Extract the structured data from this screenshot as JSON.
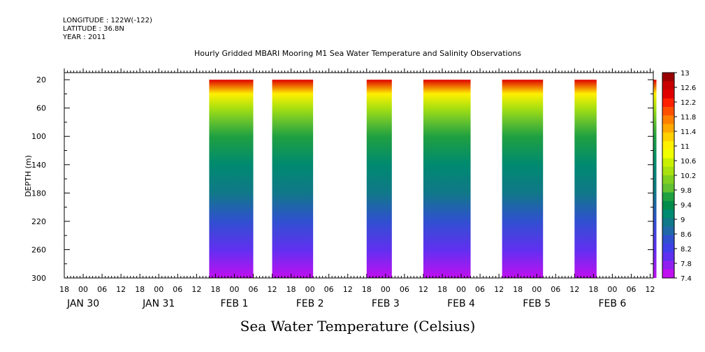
{
  "header": {
    "longitude": "LONGITUDE : 122W(-122)",
    "latitude": "LATITUDE : 36.8N",
    "year": "YEAR : 2011"
  },
  "chart_data": {
    "type": "heatmap",
    "title": "Hourly Gridded MBARI Mooring M1 Sea Water Temperature and Salinity Observations",
    "ylabel": "DEPTH (m)",
    "xlabel": "Sea Water Temperature (Celsius)",
    "ylim": [
      300,
      10
    ],
    "yticks": [
      "20",
      "60",
      "100",
      "140",
      "180",
      "220",
      "260",
      "300"
    ],
    "ytick_values": [
      20,
      60,
      100,
      140,
      180,
      220,
      260,
      300
    ],
    "xticks_hours": [
      "18",
      "00",
      "06",
      "12",
      "18",
      "00",
      "06",
      "12",
      "18",
      "00",
      "06",
      "12",
      "18",
      "00",
      "06",
      "12",
      "18",
      "00",
      "06",
      "12",
      "18",
      "00",
      "06",
      "12",
      "18",
      "00",
      "06",
      "12",
      "18",
      "00",
      "06",
      "12"
    ],
    "xticks_dates": [
      "JAN 30",
      "JAN 31",
      "FEB  1",
      "FEB  2",
      "FEB  3",
      "FEB  4",
      "FEB  5",
      "FEB  6"
    ],
    "colorbar_labels": [
      "13",
      "12.6",
      "12.2",
      "11.8",
      "11.4",
      "11",
      "10.6",
      "10.2",
      "9.8",
      "9.4",
      "9",
      "8.6",
      "8.2",
      "7.8",
      "7.4"
    ],
    "colorbar_range": [
      7.4,
      13
    ],
    "colorbar_colors": [
      "#9b0000",
      "#c80000",
      "#e00000",
      "#ff2000",
      "#ff5000",
      "#ff8000",
      "#ffa800",
      "#ffd000",
      "#fff000",
      "#f0ff00",
      "#c8f000",
      "#a8e010",
      "#80d020",
      "#60c030",
      "#20a040",
      "#008c4a",
      "#008a70",
      "#107888",
      "#2068a8",
      "#3050d0",
      "#4040e8",
      "#6030f0",
      "#9020f0",
      "#c010f0"
    ],
    "data_blocks": [
      {
        "start": "JAN 31 16:00",
        "end": "FEB 1 06:00"
      },
      {
        "start": "FEB 1 12:00",
        "end": "FEB 2 01:00"
      },
      {
        "start": "FEB 2 18:00",
        "end": "FEB 3 02:00"
      },
      {
        "start": "FEB 3 12:00",
        "end": "FEB 4 03:00"
      },
      {
        "start": "FEB 4 13:00",
        "end": "FEB 5 02:00"
      },
      {
        "start": "FEB 5 12:00",
        "end": "FEB 5 19:00"
      },
      {
        "start": "FEB 6 13:00",
        "end": "FEB 6 14:00"
      }
    ],
    "depth_temperature_profile": {
      "depths": [
        20,
        40,
        60,
        80,
        100,
        140,
        180,
        220,
        260,
        300
      ],
      "temperatures": [
        12.4,
        11.0,
        10.4,
        9.9,
        9.6,
        9.2,
        8.8,
        8.4,
        8.0,
        7.6
      ]
    }
  }
}
